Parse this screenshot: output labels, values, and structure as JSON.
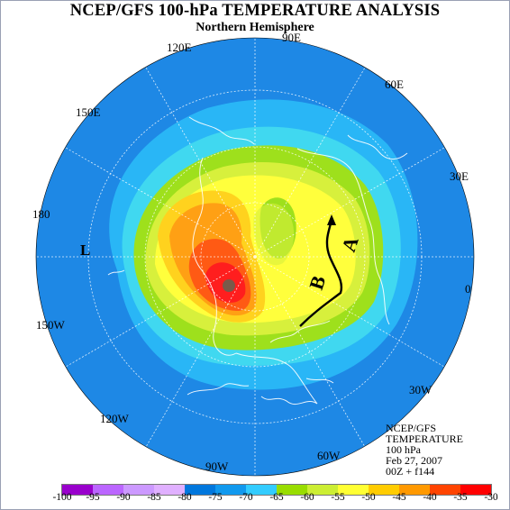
{
  "header": {
    "title": "NCEP/GFS 100-hPa TEMPERATURE ANALYSIS",
    "subtitle": "Northern Hemisphere"
  },
  "longitude_labels": [
    "0",
    "30E",
    "60E",
    "90E",
    "120E",
    "150E",
    "180",
    "150W",
    "120W",
    "90W",
    "60W",
    "30W"
  ],
  "annotations": {
    "low_marker": "L",
    "label_a": "A",
    "label_b": "B"
  },
  "info_box": {
    "line1": "NCEP/GFS",
    "line2": "TEMPERATURE",
    "line3": "100 hPa",
    "line4": "Feb 27, 2007",
    "line5": "00Z + f144"
  },
  "colorbar": {
    "ticks": [
      "-100",
      "-95",
      "-90",
      "-85",
      "-80",
      "-75",
      "-70",
      "-65",
      "-60",
      "-55",
      "-50",
      "-45",
      "-40",
      "-35",
      "-30"
    ],
    "colors": [
      "#9900cc",
      "#bb66ff",
      "#cc99ff",
      "#e0b0ff",
      "#0077dd",
      "#1199ee",
      "#33ccff",
      "#99dd00",
      "#ccee33",
      "#ffff33",
      "#ffcc00",
      "#ff9900",
      "#ff4400",
      "#ff0000",
      "#886655",
      "#777777"
    ]
  },
  "palette": {
    "ocean_blue": "#1e88e5",
    "light_blue": "#29b6f6",
    "cyan": "#40d8f0",
    "green": "#9ee01c",
    "yellow_green": "#d7f03c",
    "yellow": "#ffff3c",
    "gold": "#ffd21e",
    "orange": "#ffa014",
    "red_orange": "#ff5a14",
    "red": "#ff1e1e",
    "brown": "#7a5a4a"
  }
}
